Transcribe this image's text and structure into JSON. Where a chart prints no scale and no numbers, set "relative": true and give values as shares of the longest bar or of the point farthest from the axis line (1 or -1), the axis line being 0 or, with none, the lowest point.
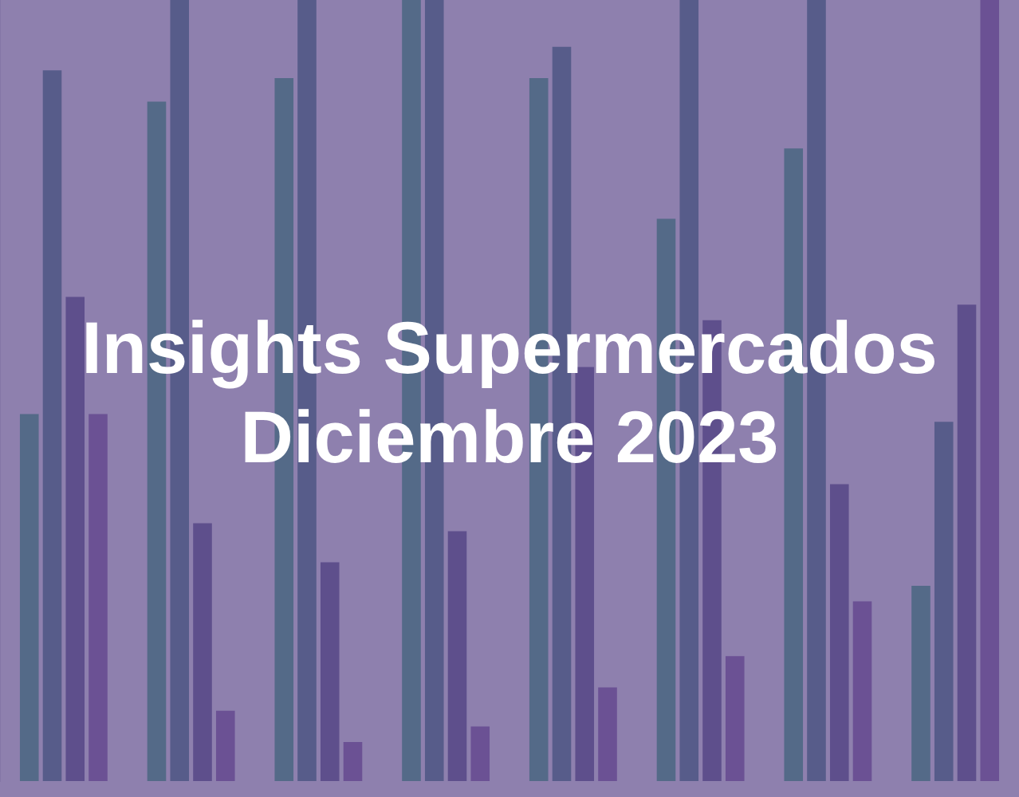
{
  "chart_data": {
    "type": "bar",
    "title": "Insights Supermercados Diciembre 2023",
    "relative": true,
    "legend": false,
    "categories": [
      null,
      null,
      null,
      null,
      null,
      null,
      null,
      null
    ],
    "series": [
      {
        "color": "#546a88",
        "values": [
          0.47,
          0.87,
          0.9,
          1,
          0.9,
          0.72,
          0.81,
          0.25
        ]
      },
      {
        "color": "#575c8a",
        "values": [
          0.91,
          1,
          1,
          1,
          0.94,
          1,
          1,
          0.46
        ]
      },
      {
        "color": "#5e4f8c",
        "values": [
          0.62,
          0.33,
          0.28,
          0.32,
          0.53,
          0.59,
          0.38,
          0.61
        ]
      },
      {
        "color": "#6b5194",
        "values": [
          0.47,
          0.09,
          0.05,
          0.07,
          0.12,
          0.16,
          0.23,
          1
        ]
      }
    ]
  }
}
